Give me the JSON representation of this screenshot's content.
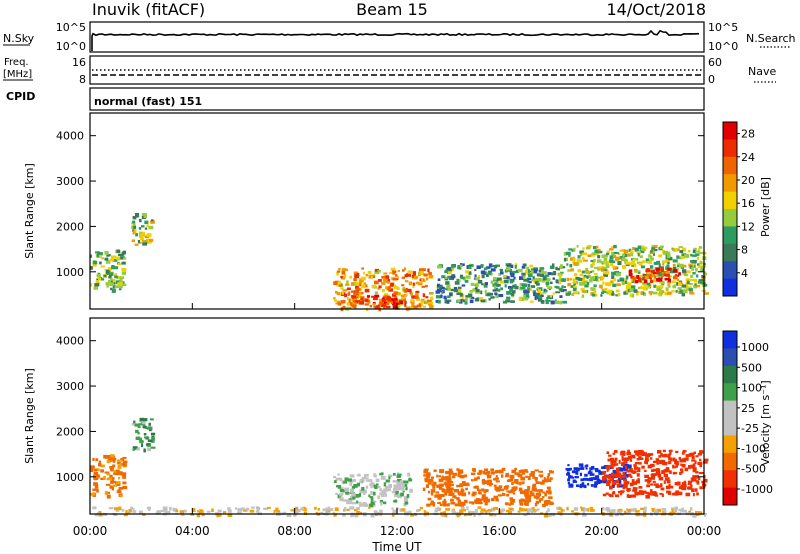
{
  "header": {
    "station": "Inuvik (fitACF)",
    "beam": "Beam 15",
    "date": "14/Oct/2018"
  },
  "nsky_panel": {
    "left_label": "N.Sky",
    "right_label": "N.Search",
    "left_ticks": [
      "10^5",
      "10^0"
    ],
    "right_ticks": [
      "10^5",
      "10^0"
    ]
  },
  "freq_panel": {
    "left_label_top": "Freq.",
    "left_label_unit": "[MHz]",
    "right_label": "Nave",
    "left_ticks": [
      "16",
      "8"
    ],
    "right_ticks": [
      "60",
      "0"
    ]
  },
  "cpid_panel": {
    "label": "CPID",
    "value": "normal (fast) 151"
  },
  "colors": {
    "power": [
      "#1030e0",
      "#2b4fb0",
      "#3a7a58",
      "#2e9c60",
      "#96cc3c",
      "#f0d000",
      "#f09a00",
      "#f06400",
      "#ec2c00",
      "#e00000"
    ],
    "velocity": [
      "#e00000",
      "#f03000",
      "#f06a00",
      "#f4a000",
      "#c2c2c2",
      "#c2c2c2",
      "#3fa04a",
      "#2a7a4a",
      "#2a4fb0",
      "#1030e0"
    ]
  },
  "chart_data": [
    {
      "type": "heatmap",
      "title": "",
      "xlabel": "Time UT",
      "ylabel": "Slant Range [km]",
      "x_range": [
        "00:00",
        "00:00"
      ],
      "x_ticks": [
        "00:00",
        "04:00",
        "08:00",
        "12:00",
        "16:00",
        "20:00",
        "00:00"
      ],
      "ylim": [
        180,
        4500
      ],
      "y_ticks": [
        1000,
        2000,
        3000,
        4000
      ],
      "colorbar": {
        "label": "Power [dB]",
        "range": [
          0,
          30
        ],
        "ticks": [
          4,
          8,
          12,
          16,
          20,
          24,
          28
        ]
      },
      "regions": [
        {
          "t": [
            0.0,
            1.3
          ],
          "r": [
            600,
            1500
          ],
          "value": 12
        },
        {
          "t": [
            1.6,
            2.4
          ],
          "r": [
            1600,
            2300
          ],
          "value": 14
        },
        {
          "t": [
            9.5,
            13.3
          ],
          "r": [
            200,
            1100
          ],
          "value": 20
        },
        {
          "t": [
            10.2,
            12.3
          ],
          "r": [
            250,
            500
          ],
          "value": 26
        },
        {
          "t": [
            13.5,
            18.5
          ],
          "r": [
            350,
            1200
          ],
          "value": 10
        },
        {
          "t": [
            18.5,
            24.0
          ],
          "r": [
            500,
            1600
          ],
          "value": 14
        },
        {
          "t": [
            21.0,
            23.0
          ],
          "r": [
            800,
            1100
          ],
          "value": 26
        }
      ]
    },
    {
      "type": "heatmap",
      "title": "",
      "xlabel": "Time UT",
      "ylabel": "Slant Range [km]",
      "x_range": [
        "00:00",
        "00:00"
      ],
      "x_ticks": [
        "00:00",
        "04:00",
        "08:00",
        "12:00",
        "16:00",
        "20:00",
        "00:00"
      ],
      "ylim": [
        180,
        4500
      ],
      "y_ticks": [
        1000,
        2000,
        3000,
        4000
      ],
      "colorbar": {
        "label": "Velocity [m s⁻¹]",
        "ticks": [
          1000,
          500,
          100,
          25,
          -25,
          -100,
          -500,
          -1000
        ]
      },
      "regions": [
        {
          "t": [
            0.0,
            1.3
          ],
          "r": [
            600,
            1500
          ],
          "value": -300
        },
        {
          "t": [
            1.6,
            2.4
          ],
          "r": [
            1600,
            2300
          ],
          "value": 80
        },
        {
          "t": [
            9.5,
            12.5
          ],
          "r": [
            400,
            1100
          ],
          "value": 0
        },
        {
          "t": [
            13.0,
            18.0
          ],
          "r": [
            400,
            1200
          ],
          "value": -400
        },
        {
          "t": [
            18.5,
            21.0
          ],
          "r": [
            800,
            1300
          ],
          "value": 800
        },
        {
          "t": [
            20.0,
            24.0
          ],
          "r": [
            600,
            1600
          ],
          "value": -600
        },
        {
          "t": [
            0.0,
            24.0
          ],
          "r": [
            180,
            350
          ],
          "value": -80
        }
      ]
    }
  ]
}
